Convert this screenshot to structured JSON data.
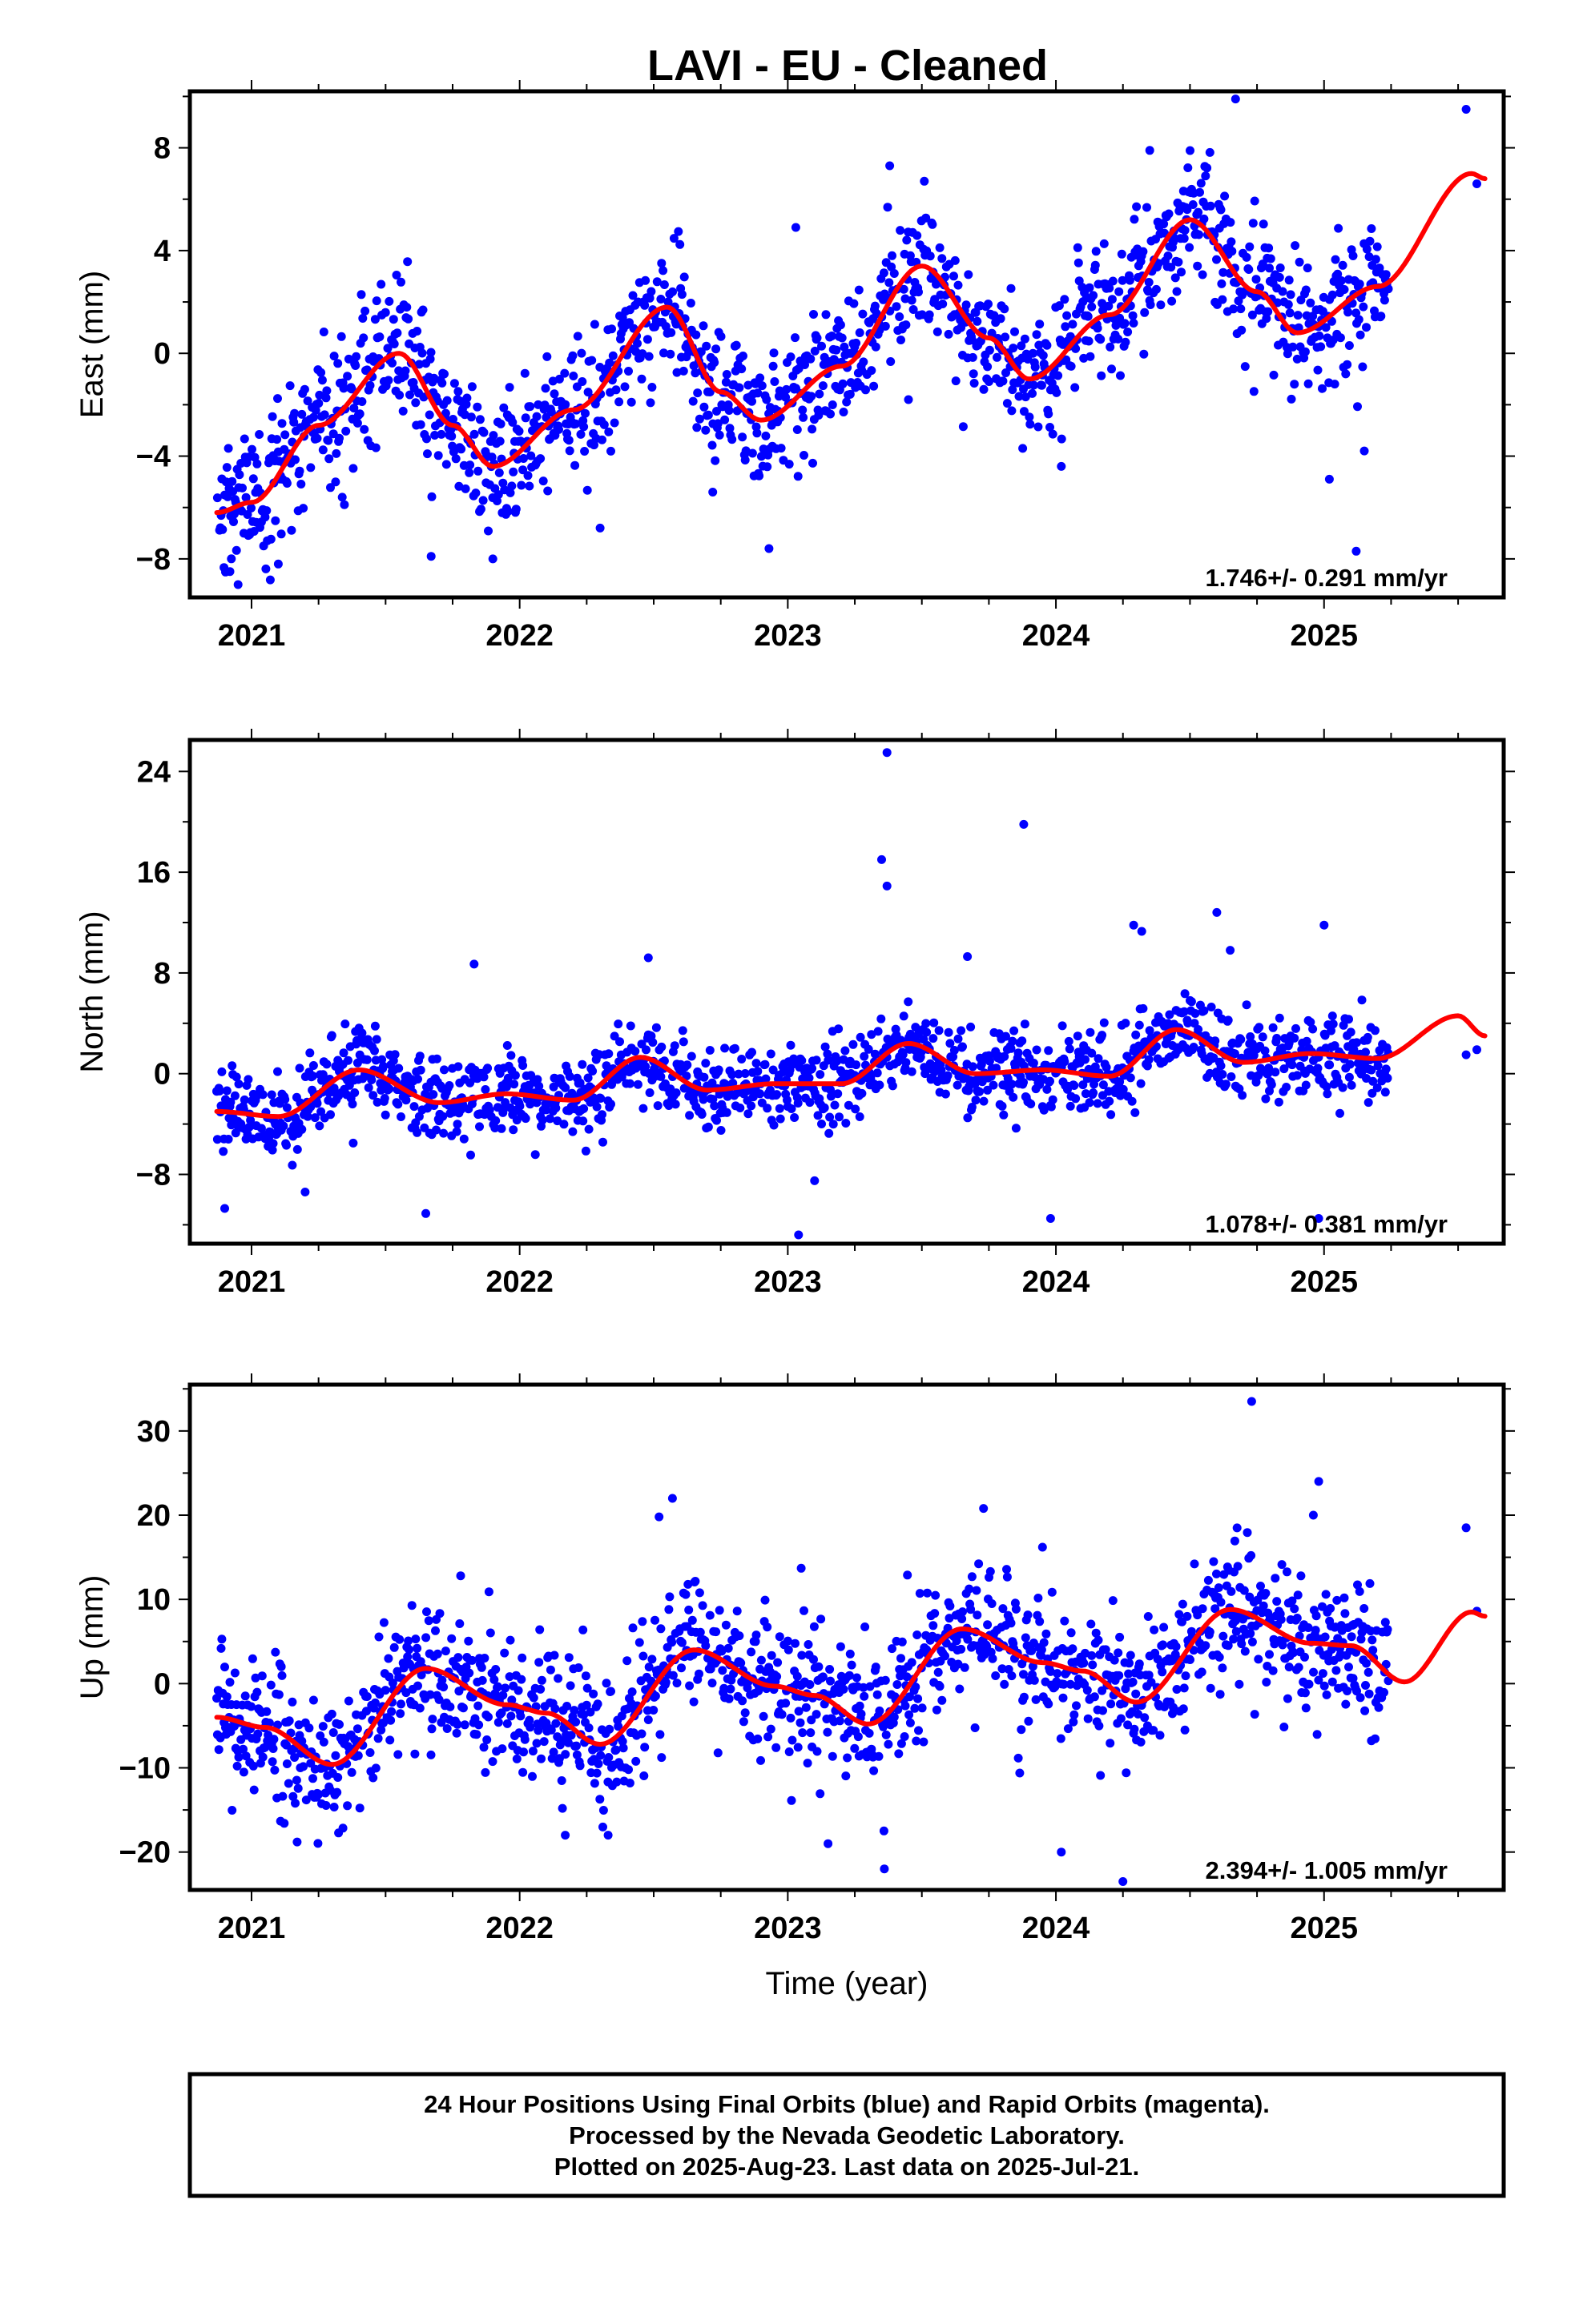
{
  "title": "LAVI  - EU - Cleaned",
  "colors": {
    "final_orbits": "#0000ff",
    "rapid_orbits": "#ff00ff",
    "model": "#ff0000",
    "frame": "#000000"
  },
  "footer": {
    "line1": "24 Hour Positions Using Final Orbits (blue) and Rapid Orbits (magenta).",
    "line2": "Processed by the Nevada Geodetic Laboratory.",
    "line3": "Plotted on 2025-Aug-23. Last data on 2025-Jul-21."
  },
  "chart_data": [
    {
      "type": "scatter",
      "ylabel": "East (mm)",
      "xlabel": "",
      "xlim": [
        2020.77,
        2025.67
      ],
      "ylim": [
        -9.5,
        10.2
      ],
      "xticks": [
        2021,
        2022,
        2023,
        2024,
        2025
      ],
      "yticks": [
        -8,
        -4,
        0,
        4,
        8
      ],
      "rate_text": "1.746+/- 0.291 mm/yr",
      "model_curve": {
        "name": "model",
        "x": [
          2020.87,
          2021.0,
          2021.25,
          2021.55,
          2021.75,
          2021.9,
          2022.2,
          2022.55,
          2022.75,
          2022.9,
          2023.2,
          2023.5,
          2023.75,
          2023.9,
          2024.2,
          2024.5,
          2024.75,
          2024.9,
          2025.2,
          2025.55,
          2025.6
        ],
        "y": [
          -6.2,
          -5.8,
          -2.8,
          0.0,
          -2.8,
          -4.4,
          -2.2,
          1.8,
          -1.5,
          -2.6,
          -0.5,
          3.4,
          0.6,
          -1.0,
          1.5,
          5.2,
          2.4,
          0.8,
          2.6,
          7.0,
          6.8
        ]
      },
      "model_params": {
        "t0": 2023.2,
        "a": -0.57,
        "b": 1.746,
        "amp": 2.8,
        "phase_year": 0.525
      },
      "scatter_spread": 1.3,
      "outliers": [
        {
          "x": 2024.67,
          "y": 9.9
        },
        {
          "x": 2025.53,
          "y": 9.5
        },
        {
          "x": 2025.57,
          "y": 6.6
        },
        {
          "x": 2023.38,
          "y": 7.3
        },
        {
          "x": 2025.02,
          "y": -4.9
        },
        {
          "x": 2025.12,
          "y": -7.7
        },
        {
          "x": 2025.15,
          "y": -3.8
        },
        {
          "x": 2022.72,
          "y": -5.4
        },
        {
          "x": 2022.93,
          "y": -7.6
        },
        {
          "x": 2022.3,
          "y": -6.8
        },
        {
          "x": 2021.67,
          "y": -7.9
        },
        {
          "x": 2021.9,
          "y": -8.0
        },
        {
          "x": 2020.95,
          "y": -9.0
        },
        {
          "x": 2021.1,
          "y": -8.2
        },
        {
          "x": 2023.03,
          "y": 4.9
        },
        {
          "x": 2024.35,
          "y": 7.9
        },
        {
          "x": 2024.02,
          "y": -4.4
        },
        {
          "x": 2023.45,
          "y": -1.8
        }
      ]
    },
    {
      "type": "scatter",
      "ylabel": "North (mm)",
      "xlabel": "",
      "xlim": [
        2020.77,
        2025.67
      ],
      "ylim": [
        -13.5,
        26.5
      ],
      "xticks": [
        2021,
        2022,
        2023,
        2024,
        2025
      ],
      "yticks": [
        -8,
        0,
        8,
        16,
        24
      ],
      "rate_text": "1.078+/- 0.381 mm/yr",
      "model_curve": {
        "name": "model",
        "x": [
          2020.87,
          2021.1,
          2021.4,
          2021.7,
          2021.95,
          2022.2,
          2022.45,
          2022.7,
          2022.95,
          2023.2,
          2023.45,
          2023.7,
          2023.95,
          2024.2,
          2024.45,
          2024.7,
          2024.95,
          2025.2,
          2025.5,
          2025.6
        ],
        "y": [
          -3.0,
          -3.4,
          0.3,
          -2.3,
          -1.6,
          -2.1,
          1.3,
          -1.3,
          -0.8,
          -0.8,
          2.4,
          0.0,
          0.3,
          -0.2,
          3.5,
          0.9,
          1.6,
          1.2,
          4.6,
          3.0
        ]
      },
      "model_params": {
        "t0": 2023.2,
        "a": -0.3,
        "b": 1.078,
        "amp": 1.6,
        "phase_year": 0.42
      },
      "scatter_spread": 1.6,
      "outliers": [
        {
          "x": 2023.37,
          "y": 25.5
        },
        {
          "x": 2023.35,
          "y": 17.0
        },
        {
          "x": 2023.37,
          "y": 14.9
        },
        {
          "x": 2023.88,
          "y": 19.8
        },
        {
          "x": 2023.98,
          "y": -11.5
        },
        {
          "x": 2023.04,
          "y": -12.8
        },
        {
          "x": 2021.65,
          "y": -11.1
        },
        {
          "x": 2020.9,
          "y": -10.7
        },
        {
          "x": 2021.2,
          "y": -9.4
        },
        {
          "x": 2024.29,
          "y": 11.8
        },
        {
          "x": 2024.32,
          "y": 11.3
        },
        {
          "x": 2024.6,
          "y": 12.8
        },
        {
          "x": 2025.0,
          "y": 11.8
        },
        {
          "x": 2024.98,
          "y": -11.5
        },
        {
          "x": 2025.53,
          "y": 1.5
        },
        {
          "x": 2025.57,
          "y": 1.9
        },
        {
          "x": 2021.83,
          "y": 8.7
        },
        {
          "x": 2022.48,
          "y": 9.2
        },
        {
          "x": 2023.67,
          "y": 9.3
        },
        {
          "x": 2024.65,
          "y": 9.8
        },
        {
          "x": 2023.1,
          "y": -8.5
        }
      ]
    },
    {
      "type": "scatter",
      "ylabel": "Up (mm)",
      "xlabel": "Time (year)",
      "xlim": [
        2020.77,
        2025.67
      ],
      "ylim": [
        -24.5,
        35.5
      ],
      "xticks": [
        2021,
        2022,
        2023,
        2024,
        2025
      ],
      "yticks": [
        -20,
        -10,
        0,
        10,
        20,
        30
      ],
      "rate_text": "2.394+/- 1.005 mm/yr",
      "model_curve": {
        "name": "model",
        "x": [
          2020.87,
          2021.05,
          2021.3,
          2021.65,
          2021.95,
          2022.1,
          2022.3,
          2022.65,
          2022.95,
          2023.1,
          2023.3,
          2023.65,
          2023.95,
          2024.1,
          2024.3,
          2024.65,
          2024.95,
          2025.1,
          2025.3,
          2025.55,
          2025.6
        ],
        "y": [
          -4.0,
          -5.2,
          -9.6,
          1.8,
          -2.5,
          -3.5,
          -7.2,
          4.0,
          -0.3,
          -1.4,
          -4.8,
          6.5,
          2.5,
          1.5,
          -2.2,
          8.8,
          4.8,
          4.5,
          0.2,
          8.5,
          8.0
        ]
      },
      "model_params": {
        "t0": 2023.2,
        "a": 0.6,
        "b": 2.394,
        "amp": 4.8,
        "phase_year": 0.66
      },
      "scatter_spread": 4.0,
      "outliers": [
        {
          "x": 2024.73,
          "y": 33.5
        },
        {
          "x": 2024.98,
          "y": 24.0
        },
        {
          "x": 2024.96,
          "y": 20.0
        },
        {
          "x": 2022.57,
          "y": 22.0
        },
        {
          "x": 2022.52,
          "y": 19.8
        },
        {
          "x": 2023.73,
          "y": 20.8
        },
        {
          "x": 2025.53,
          "y": 18.5
        },
        {
          "x": 2025.57,
          "y": 8.6
        },
        {
          "x": 2024.25,
          "y": -23.5
        },
        {
          "x": 2023.36,
          "y": -22.0
        },
        {
          "x": 2024.02,
          "y": -20.0
        },
        {
          "x": 2023.15,
          "y": -19.0
        },
        {
          "x": 2021.17,
          "y": -18.8
        },
        {
          "x": 2022.17,
          "y": -18.0
        },
        {
          "x": 2022.33,
          "y": -18.0
        },
        {
          "x": 2023.05,
          "y": 13.7
        },
        {
          "x": 2023.95,
          "y": 16.2
        },
        {
          "x": 2021.78,
          "y": 12.8
        }
      ]
    }
  ]
}
